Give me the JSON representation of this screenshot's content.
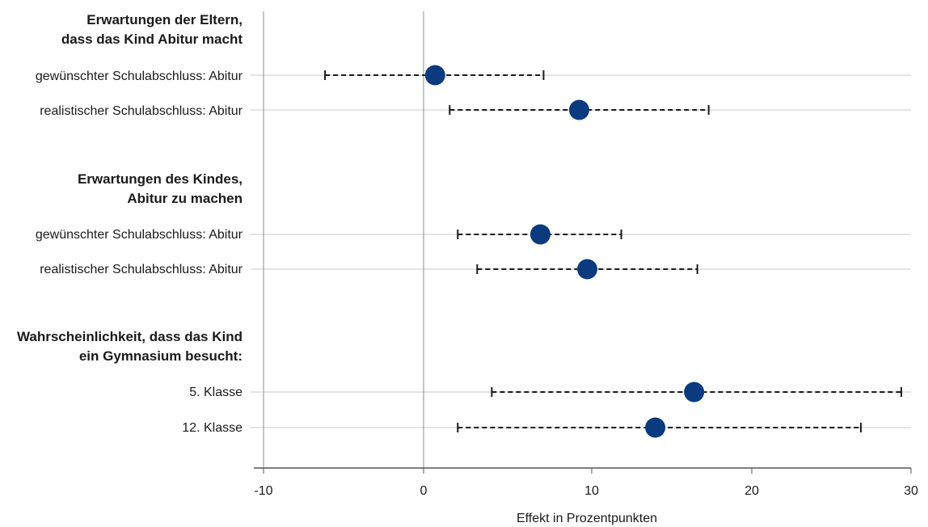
{
  "chart_data": {
    "type": "scatter",
    "subtype": "forest-plot",
    "xlabel": "Effekt in Prozentpunkten",
    "xlim": [
      -10,
      30
    ],
    "xticks": [
      -10,
      0,
      10,
      20,
      30
    ],
    "xtick_labels": [
      "-10",
      "0",
      "10",
      "20",
      "30"
    ],
    "reference_line": 0,
    "grid": "horizontal row lines",
    "point_color": "#0b3a7e",
    "errorbar_style": "dashed",
    "groups": [
      {
        "title": [
          "Erwartungen der Eltern,",
          "dass das Kind Abitur macht"
        ],
        "rows": [
          {
            "label": "gewünschter Schulabschluss: Abitur",
            "estimate": 0.6,
            "ci_low": -6.2,
            "ci_high": 7.3
          },
          {
            "label": "realistischer Schulabschluss: Abitur",
            "estimate": 9.5,
            "ci_low": 1.5,
            "ci_high": 17.5
          }
        ]
      },
      {
        "title": [
          "Erwartungen des Kindes,",
          "Abitur zu machen"
        ],
        "rows": [
          {
            "label": "gewünschter Schulabschluss: Abitur",
            "estimate": 7.1,
            "ci_low": 2.0,
            "ci_high": 12.1
          },
          {
            "label": "realistischer Schulabschluss: Abitur",
            "estimate": 10.0,
            "ci_low": 3.2,
            "ci_high": 16.8
          }
        ]
      },
      {
        "title": [
          "Wahrscheinlichkeit, dass das Kind",
          "ein Gymnasium besucht:"
        ],
        "rows": [
          {
            "label": "5. Klasse",
            "estimate": 16.6,
            "ci_low": 4.1,
            "ci_high": 29.4
          },
          {
            "label": "12. Klasse",
            "estimate": 14.2,
            "ci_low": 2.0,
            "ci_high": 26.9
          }
        ]
      }
    ]
  }
}
